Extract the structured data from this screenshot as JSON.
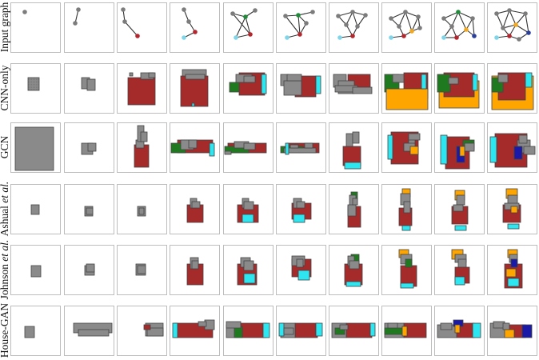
{
  "colors": {
    "gray": "#8a8a8a",
    "red": "#a52a2a",
    "green": "#1f7a1f",
    "cyan": "#2ee6f0",
    "orange": "#ffa500",
    "blue": "#1a1aa6",
    "graph_gray": "#7c7c7c",
    "graph_red": "#b3262e",
    "graph_cyan": "#80d6e8",
    "graph_green": "#1f8a3a",
    "graph_orange": "#f2a81d",
    "graph_blue": "#2a3f9a"
  },
  "rows": [
    {
      "label": "Input graph",
      "italic_part": ""
    },
    {
      "label": "CNN-only",
      "italic_part": ""
    },
    {
      "label": "GCN",
      "italic_part": ""
    },
    {
      "label": "Ashual ",
      "italic_part": "et al."
    },
    {
      "label": "Johnson ",
      "italic_part": "et al."
    },
    {
      "label": "House-GAN",
      "italic_part": ""
    }
  ],
  "columns": 10
}
